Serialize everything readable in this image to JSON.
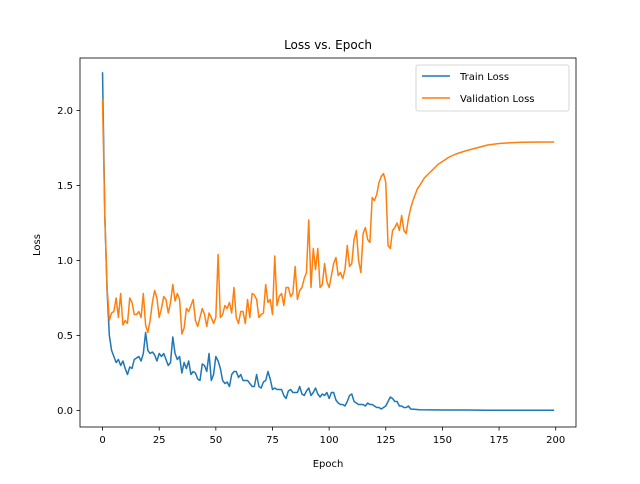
{
  "chart_data": {
    "type": "line",
    "title": "Loss vs. Epoch",
    "xlabel": "Epoch",
    "ylabel": "Loss",
    "xlim": [
      -9.95,
      208.95
    ],
    "ylim": [
      -0.11,
      2.35
    ],
    "xticks": [
      0,
      25,
      50,
      75,
      100,
      125,
      150,
      175,
      200
    ],
    "yticks": [
      0.0,
      0.5,
      1.0,
      1.5,
      2.0
    ],
    "xtick_labels": [
      "0",
      "25",
      "50",
      "75",
      "100",
      "125",
      "150",
      "175",
      "200"
    ],
    "ytick_labels": [
      "0.0",
      "0.5",
      "1.0",
      "1.5",
      "2.0"
    ],
    "grid": false,
    "legend_position": "upper-right",
    "series": [
      {
        "name": "Train Loss",
        "color": "#1f77b4",
        "x": [
          0,
          1,
          2,
          3,
          4,
          5,
          6,
          7,
          8,
          9,
          10,
          11,
          12,
          13,
          14,
          15,
          16,
          17,
          18,
          19,
          20,
          21,
          22,
          23,
          24,
          25,
          26,
          27,
          28,
          29,
          30,
          31,
          32,
          33,
          34,
          35,
          36,
          37,
          38,
          39,
          40,
          41,
          42,
          43,
          44,
          45,
          46,
          47,
          48,
          49,
          50,
          51,
          52,
          53,
          54,
          55,
          56,
          57,
          58,
          59,
          60,
          61,
          62,
          63,
          64,
          65,
          66,
          67,
          68,
          69,
          70,
          71,
          72,
          73,
          74,
          75,
          76,
          77,
          78,
          79,
          80,
          81,
          82,
          83,
          84,
          85,
          86,
          87,
          88,
          89,
          90,
          91,
          92,
          93,
          94,
          95,
          96,
          97,
          98,
          99,
          100,
          101,
          102,
          103,
          104,
          105,
          106,
          107,
          108,
          109,
          110,
          111,
          112,
          113,
          114,
          115,
          116,
          117,
          118,
          119,
          120,
          121,
          122,
          123,
          124,
          125,
          126,
          127,
          128,
          129,
          130,
          131,
          132,
          133,
          134,
          135,
          136,
          140,
          145,
          150,
          160,
          170,
          180,
          190,
          199
        ],
        "values": [
          2.25,
          1.3,
          0.8,
          0.5,
          0.4,
          0.36,
          0.32,
          0.34,
          0.3,
          0.33,
          0.28,
          0.24,
          0.29,
          0.28,
          0.34,
          0.35,
          0.36,
          0.33,
          0.38,
          0.52,
          0.4,
          0.38,
          0.39,
          0.37,
          0.33,
          0.38,
          0.36,
          0.38,
          0.34,
          0.3,
          0.32,
          0.49,
          0.38,
          0.34,
          0.36,
          0.25,
          0.32,
          0.28,
          0.33,
          0.24,
          0.26,
          0.25,
          0.21,
          0.2,
          0.31,
          0.3,
          0.26,
          0.38,
          0.2,
          0.24,
          0.36,
          0.33,
          0.28,
          0.2,
          0.18,
          0.19,
          0.16,
          0.24,
          0.26,
          0.26,
          0.22,
          0.24,
          0.2,
          0.2,
          0.2,
          0.18,
          0.16,
          0.16,
          0.24,
          0.16,
          0.15,
          0.19,
          0.2,
          0.26,
          0.21,
          0.14,
          0.15,
          0.14,
          0.14,
          0.14,
          0.1,
          0.08,
          0.13,
          0.14,
          0.12,
          0.12,
          0.12,
          0.16,
          0.11,
          0.1,
          0.13,
          0.15,
          0.1,
          0.12,
          0.15,
          0.11,
          0.09,
          0.11,
          0.1,
          0.12,
          0.08,
          0.12,
          0.12,
          0.07,
          0.05,
          0.04,
          0.04,
          0.03,
          0.06,
          0.1,
          0.11,
          0.06,
          0.05,
          0.04,
          0.04,
          0.04,
          0.03,
          0.05,
          0.04,
          0.04,
          0.03,
          0.02,
          0.02,
          0.01,
          0.02,
          0.03,
          0.06,
          0.09,
          0.08,
          0.06,
          0.06,
          0.03,
          0.03,
          0.02,
          0.02,
          0.03,
          0.01,
          0.005,
          0.004,
          0.003,
          0.003,
          0.002,
          0.002,
          0.002,
          0.002
        ]
      },
      {
        "name": "Validation Loss",
        "color": "#ff7f0e",
        "x": [
          0,
          1,
          2,
          3,
          4,
          5,
          6,
          7,
          8,
          9,
          10,
          11,
          12,
          13,
          14,
          15,
          16,
          17,
          18,
          19,
          20,
          21,
          22,
          23,
          24,
          25,
          26,
          27,
          28,
          29,
          30,
          31,
          32,
          33,
          34,
          35,
          36,
          37,
          38,
          39,
          40,
          41,
          42,
          43,
          44,
          45,
          46,
          47,
          48,
          49,
          50,
          51,
          52,
          53,
          54,
          55,
          56,
          57,
          58,
          59,
          60,
          61,
          62,
          63,
          64,
          65,
          66,
          67,
          68,
          69,
          70,
          71,
          72,
          73,
          74,
          75,
          76,
          77,
          78,
          79,
          80,
          81,
          82,
          83,
          84,
          85,
          86,
          87,
          88,
          89,
          90,
          91,
          92,
          93,
          94,
          95,
          96,
          97,
          98,
          99,
          100,
          101,
          102,
          103,
          104,
          105,
          106,
          107,
          108,
          109,
          110,
          111,
          112,
          113,
          114,
          115,
          116,
          117,
          118,
          119,
          120,
          121,
          122,
          123,
          124,
          125,
          126,
          127,
          128,
          129,
          130,
          131,
          132,
          133,
          134,
          135,
          136,
          137,
          138,
          139,
          140,
          142,
          144,
          146,
          148,
          150,
          153,
          156,
          160,
          165,
          170,
          175,
          180,
          185,
          190,
          195,
          199
        ],
        "values": [
          2.07,
          1.3,
          0.82,
          0.6,
          0.65,
          0.66,
          0.75,
          0.62,
          0.78,
          0.57,
          0.6,
          0.58,
          0.75,
          0.72,
          0.64,
          0.64,
          0.66,
          0.62,
          0.78,
          0.57,
          0.52,
          0.6,
          0.72,
          0.8,
          0.75,
          0.62,
          0.68,
          0.76,
          0.74,
          0.65,
          0.72,
          0.84,
          0.73,
          0.78,
          0.74,
          0.51,
          0.55,
          0.68,
          0.66,
          0.7,
          0.74,
          0.6,
          0.56,
          0.62,
          0.68,
          0.64,
          0.56,
          0.65,
          0.62,
          0.58,
          0.62,
          1.04,
          0.62,
          0.64,
          0.7,
          0.68,
          0.72,
          0.65,
          0.82,
          0.62,
          0.58,
          0.66,
          0.66,
          0.58,
          0.74,
          0.62,
          0.78,
          0.77,
          0.74,
          0.62,
          0.64,
          0.65,
          0.84,
          0.72,
          0.74,
          0.64,
          1.03,
          0.7,
          0.76,
          0.78,
          0.7,
          0.82,
          0.82,
          0.76,
          0.78,
          0.96,
          0.74,
          0.8,
          0.82,
          0.88,
          0.92,
          1.27,
          0.82,
          1.08,
          0.94,
          1.08,
          0.82,
          0.84,
          0.98,
          0.86,
          0.82,
          0.9,
          0.98,
          1.02,
          0.9,
          0.92,
          0.88,
          0.94,
          1.1,
          0.96,
          0.98,
          1.14,
          1.2,
          1.0,
          0.92,
          1.18,
          1.22,
          1.14,
          1.12,
          1.42,
          1.4,
          1.44,
          1.52,
          1.56,
          1.58,
          1.52,
          1.1,
          1.08,
          1.2,
          1.22,
          1.25,
          1.2,
          1.3,
          1.2,
          1.18,
          1.28,
          1.35,
          1.4,
          1.44,
          1.48,
          1.5,
          1.55,
          1.58,
          1.61,
          1.64,
          1.66,
          1.69,
          1.71,
          1.73,
          1.75,
          1.77,
          1.78,
          1.785,
          1.788,
          1.789,
          1.79,
          1.79
        ]
      }
    ]
  }
}
